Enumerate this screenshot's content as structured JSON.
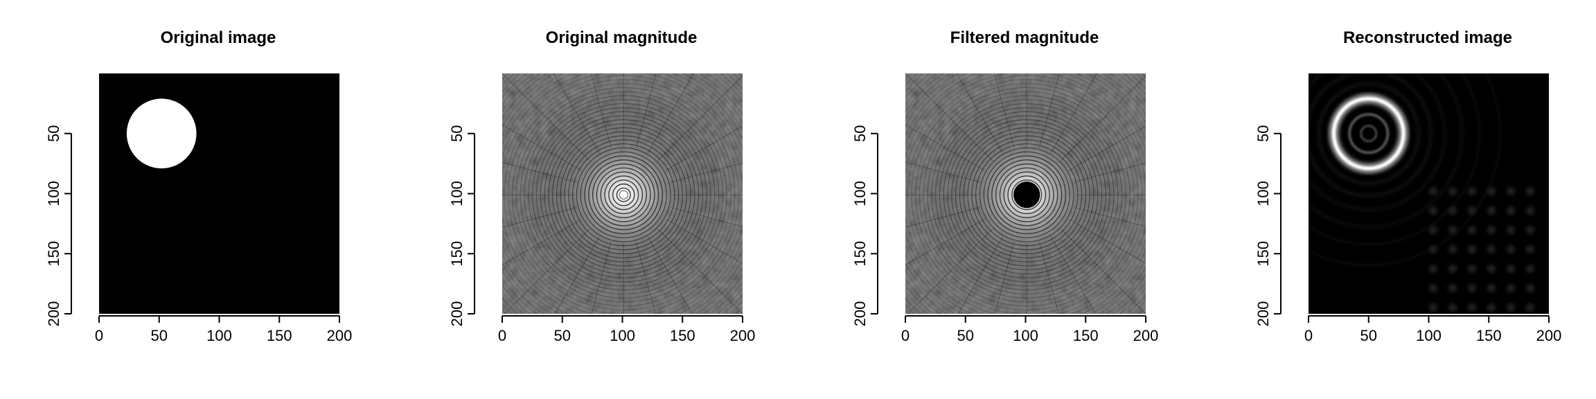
{
  "chart_data": [
    {
      "type": "heatmap",
      "title": "Original image",
      "content": "disk",
      "image_size": 200,
      "disk_center": [
        52,
        50
      ],
      "disk_radius": 29,
      "xlim": [
        0,
        200
      ],
      "ylim": [
        200,
        0
      ],
      "xticks": [
        "0",
        "50",
        "100",
        "150",
        "200"
      ],
      "yticks": [
        "50",
        "100",
        "150",
        "200"
      ],
      "colormap": "grayscale"
    },
    {
      "type": "heatmap",
      "title": "Original magnitude",
      "content": "fft-magnitude",
      "spectrum_center": [
        101,
        101
      ],
      "xlim": [
        0,
        200
      ],
      "ylim": [
        200,
        0
      ],
      "xticks": [
        "0",
        "50",
        "100",
        "150",
        "200"
      ],
      "yticks": [
        "50",
        "100",
        "150",
        "200"
      ],
      "colormap": "grayscale"
    },
    {
      "type": "heatmap",
      "title": "Filtered magnitude",
      "content": "fft-magnitude-filtered",
      "spectrum_center": [
        101,
        101
      ],
      "cutoff_radius": 11,
      "xlim": [
        0,
        200
      ],
      "ylim": [
        200,
        0
      ],
      "xticks": [
        "0",
        "50",
        "100",
        "150",
        "200"
      ],
      "yticks": [
        "50",
        "100",
        "150",
        "200"
      ],
      "colormap": "grayscale"
    },
    {
      "type": "heatmap",
      "title": "Reconstructed image",
      "content": "edge-ring",
      "disk_center": [
        50,
        50
      ],
      "disk_radius": 29,
      "xlim": [
        0,
        200
      ],
      "ylim": [
        200,
        0
      ],
      "xticks": [
        "0",
        "50",
        "100",
        "150",
        "200"
      ],
      "yticks": [
        "50",
        "100",
        "150",
        "200"
      ],
      "colormap": "grayscale"
    }
  ]
}
